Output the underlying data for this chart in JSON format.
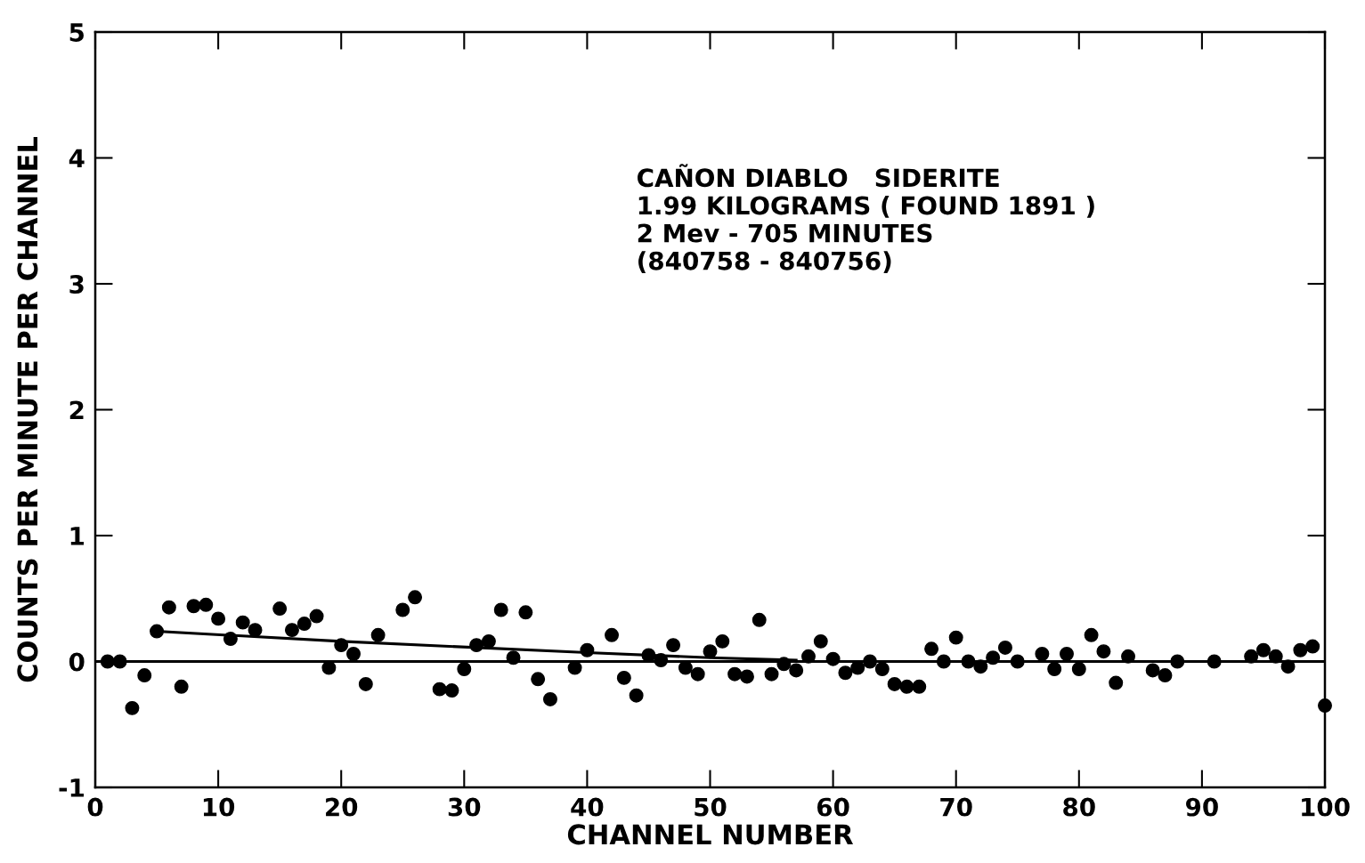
{
  "chart_data": {
    "type": "scatter",
    "xlabel": "CHANNEL NUMBER",
    "ylabel": "COUNTS PER MINUTE PER CHANNEL",
    "annotations": [
      "CAÑON DIABLO   SIDERITE\n1.99 KILOGRAMS ( FOUND 1891 )\n2 Mev - 705 MINUTES\n(840758 - 840756)"
    ],
    "series": [
      {
        "marker": "circle",
        "color": "#000000",
        "x": [
          1,
          2,
          3,
          4,
          5,
          6,
          7,
          8,
          9,
          10,
          11,
          12,
          13,
          15,
          16,
          17,
          18,
          19,
          20,
          21,
          22,
          23,
          25,
          26,
          28,
          29,
          30,
          31,
          32,
          33,
          34,
          35,
          36,
          37,
          39,
          40,
          42,
          43,
          44,
          45,
          46,
          47,
          48,
          49,
          50,
          51,
          52,
          53,
          54,
          55,
          56,
          57,
          58,
          59,
          60,
          61,
          62,
          63,
          64,
          65,
          66,
          67,
          68,
          69,
          70,
          71,
          72,
          73,
          74,
          75,
          77,
          78,
          79,
          80,
          81,
          82,
          83,
          84,
          86,
          87,
          88,
          91,
          94,
          95,
          96,
          97,
          98,
          99,
          100
        ],
        "values": [
          0,
          0,
          -0.37,
          -0.11,
          0.24,
          0.43,
          -0.2,
          0.44,
          0.45,
          0.34,
          0.18,
          0.31,
          0.25,
          0.42,
          0.25,
          0.3,
          0.36,
          -0.05,
          0.13,
          0.06,
          -0.18,
          0.21,
          0.41,
          0.51,
          -0.22,
          -0.23,
          -0.06,
          0.13,
          0.16,
          0.41,
          0.03,
          0.39,
          -0.14,
          -0.3,
          -0.05,
          0.09,
          0.21,
          -0.13,
          -0.27,
          0.05,
          0.01,
          0.13,
          -0.05,
          -0.1,
          0.08,
          0.16,
          -0.1,
          -0.12,
          0.33,
          -0.1,
          -0.02,
          -0.07,
          0.04,
          0.16,
          0.02,
          -0.09,
          -0.05,
          0,
          -0.06,
          -0.18,
          -0.2,
          -0.2,
          0.1,
          0,
          0.19,
          0,
          -0.04,
          0.03,
          0.11,
          0,
          0.06,
          -0.06,
          0.06,
          -0.06,
          0.21,
          0.08,
          -0.17,
          0.04,
          -0.07,
          -0.11,
          0,
          0,
          0.04,
          0.09,
          0.04,
          -0.04,
          0.09,
          0.12,
          -0.35
        ]
      },
      {
        "type": "line",
        "marker": "none",
        "color": "#000000",
        "x": [
          5,
          20,
          40,
          50,
          57
        ],
        "values": [
          0.24,
          0.16,
          0.07,
          0.03,
          0.01
        ]
      }
    ],
    "ref_lines": [
      {
        "axis": "y",
        "value": 0,
        "color": "#000000"
      }
    ],
    "xlim": [
      0,
      100
    ],
    "xticks": [
      0,
      10,
      20,
      30,
      40,
      50,
      60,
      70,
      80,
      90,
      100
    ],
    "ylim": [
      -1,
      5
    ],
    "yticks": [
      {
        "value": -1,
        "label": "-1"
      },
      0,
      1,
      2,
      3,
      4,
      5
    ],
    "grid": false,
    "legend": false,
    "line_style": "solid"
  }
}
